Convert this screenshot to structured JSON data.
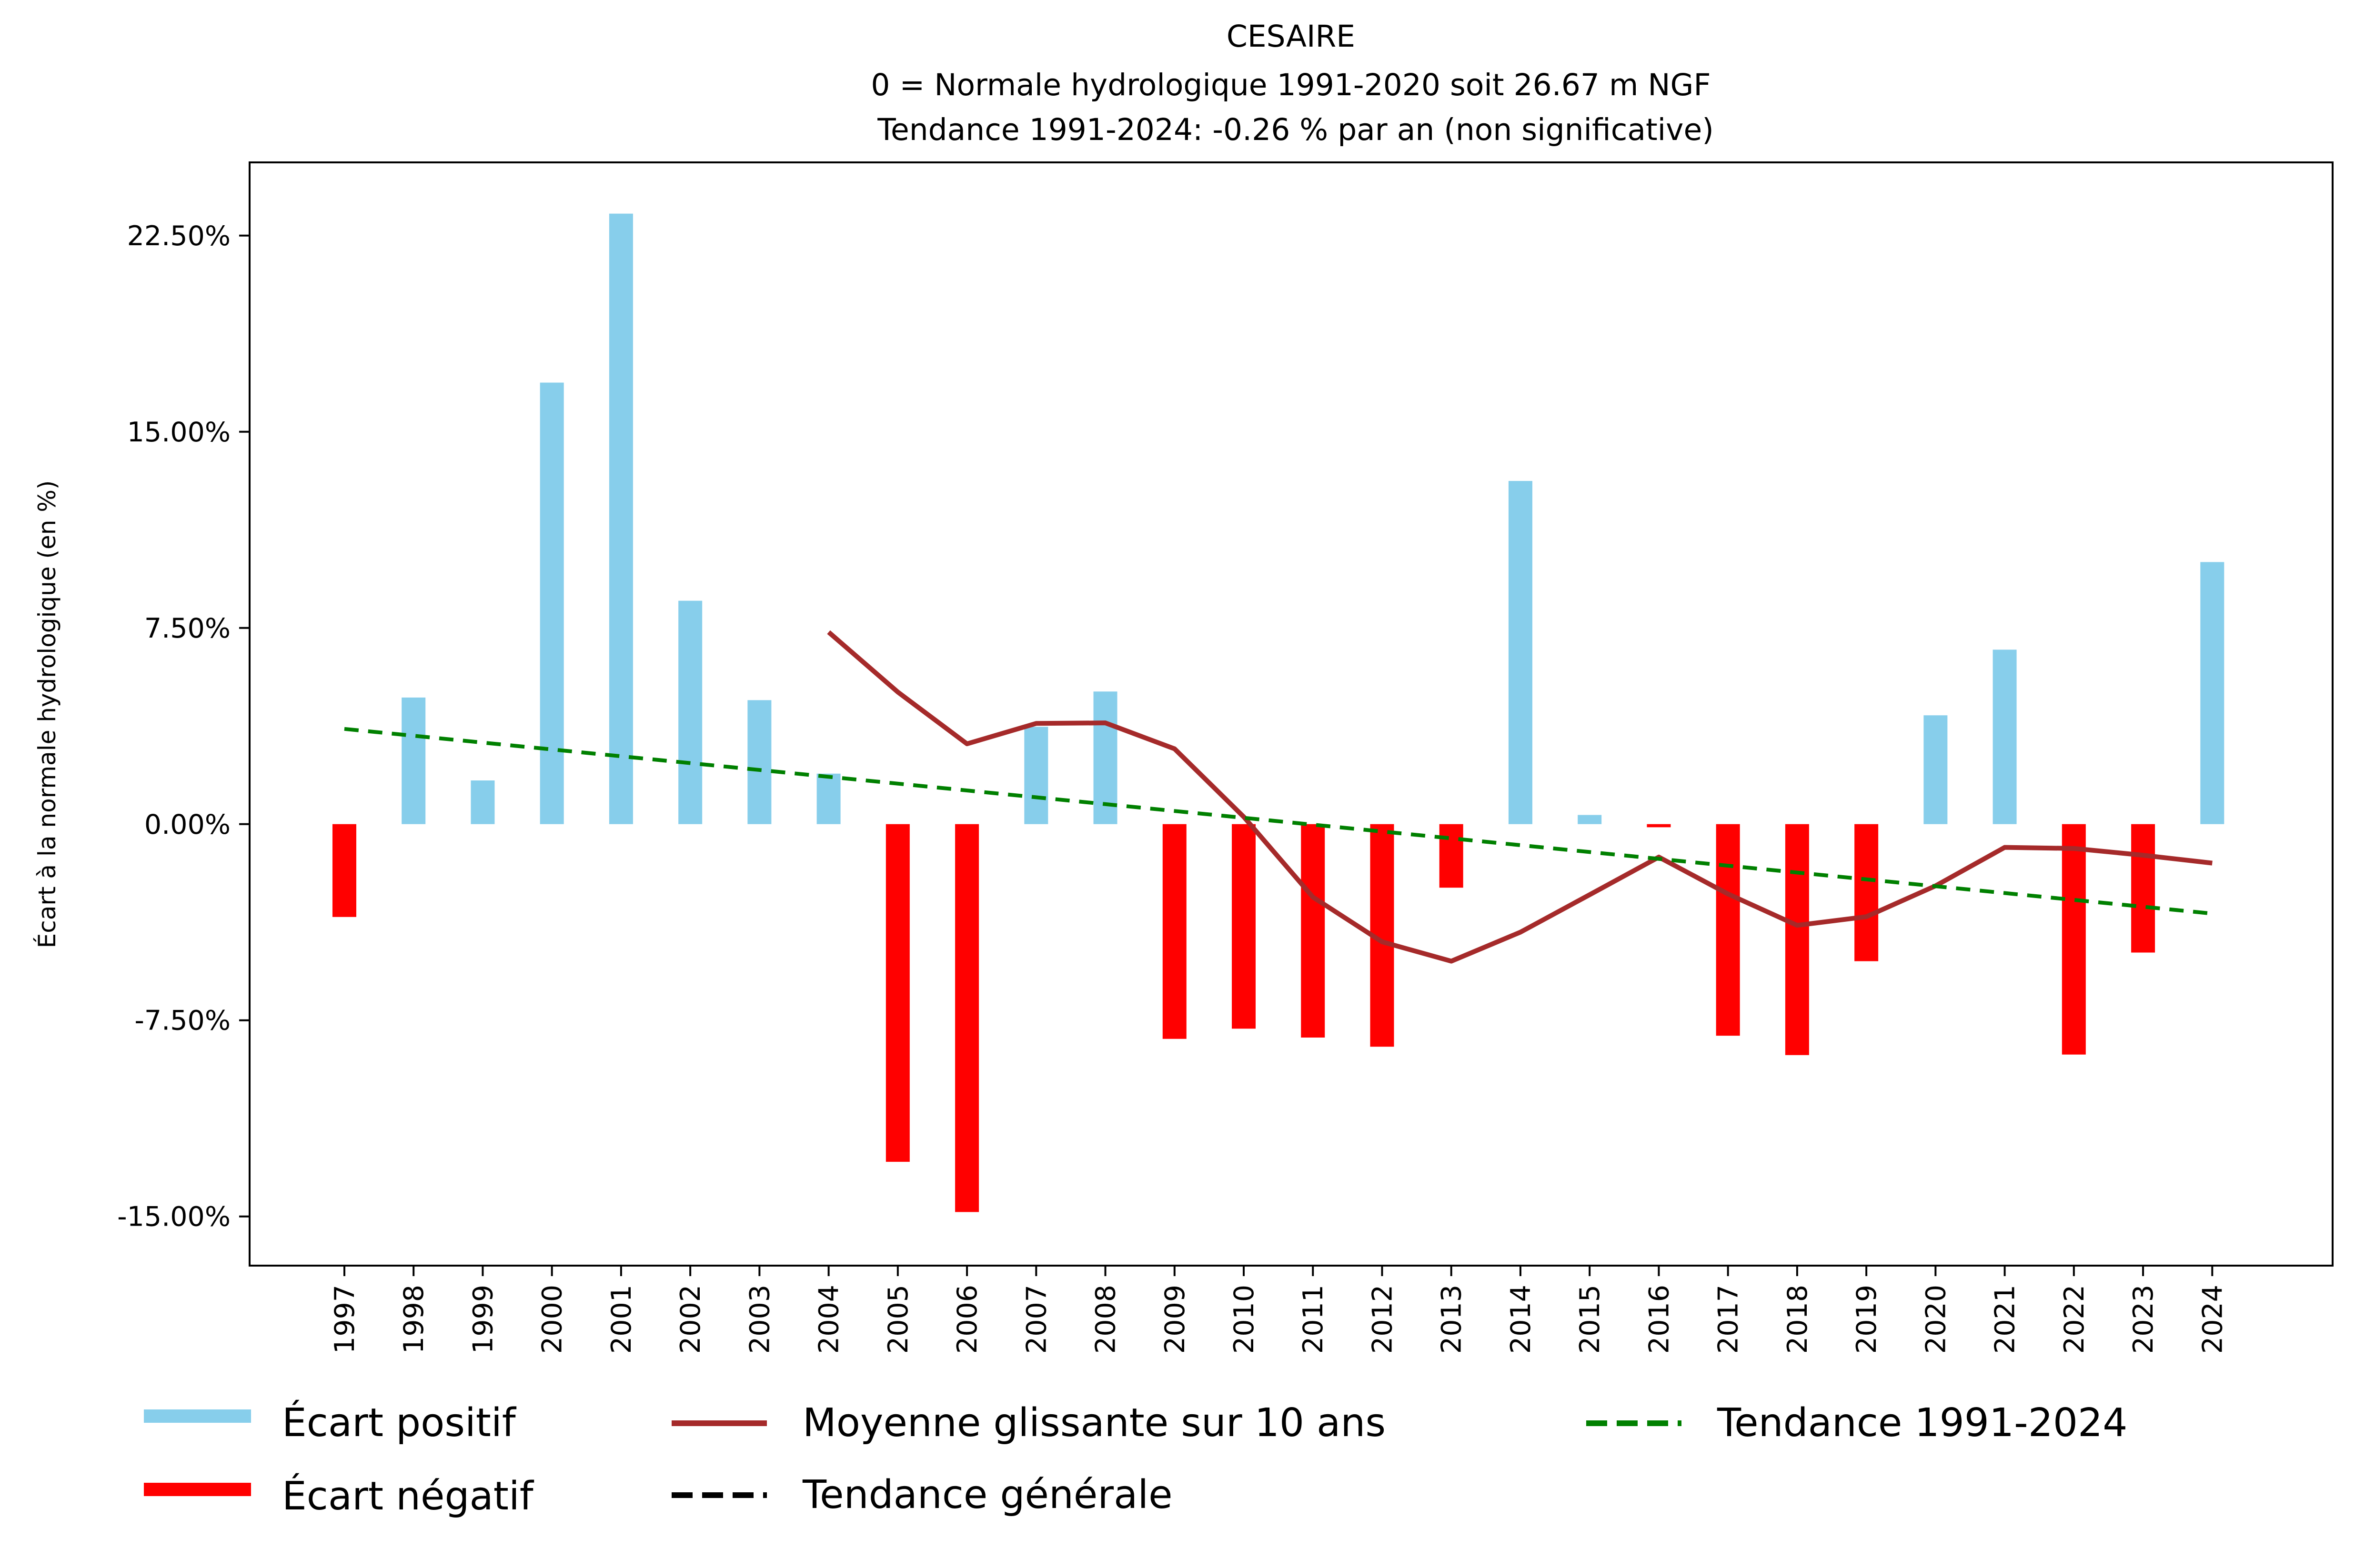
{
  "chart_data": {
    "type": "bar",
    "title_lines": [
      "CESAIRE",
      "0 = Normale hydrologique 1991-2020 soit 26.67 m NGF",
      " Tendance 1991-2024: -0.26 % par an (non significative)"
    ],
    "xlabel": "",
    "ylabel": "Écart à la normale hydrologique (en %)",
    "ylim": [
      -16.88,
      25.3
    ],
    "yticks": [
      -15,
      -7.5,
      0,
      7.5,
      15,
      22.5
    ],
    "ytick_labels": [
      "-15.00%",
      "-7.50%",
      "0.00%",
      "7.50%",
      "15.00%",
      "22.50%"
    ],
    "categories": [
      "1997",
      "1998",
      "1999",
      "2000",
      "2001",
      "2002",
      "2003",
      "2004",
      "2005",
      "2006",
      "2007",
      "2008",
      "2009",
      "2010",
      "2011",
      "2012",
      "2013",
      "2014",
      "2015",
      "2016",
      "2017",
      "2018",
      "2019",
      "2020",
      "2021",
      "2022",
      "2023",
      "2024"
    ],
    "values": [
      -3.55,
      4.84,
      1.67,
      16.88,
      23.34,
      8.54,
      4.74,
      1.93,
      -12.91,
      -14.83,
      3.72,
      5.07,
      -8.21,
      -7.82,
      -8.16,
      -8.51,
      -2.43,
      13.12,
      0.35,
      -0.12,
      -8.09,
      -8.83,
      -5.24,
      4.16,
      6.67,
      -8.81,
      -4.91,
      10.02
    ],
    "series": [
      {
        "name": "Moyenne glissante sur 10 ans",
        "type": "line",
        "x": [
          "2004",
          "2005",
          "2006",
          "2007",
          "2008",
          "2009",
          "2010",
          "2011",
          "2012",
          "2013",
          "2014",
          "2015",
          "2016",
          "2017",
          "2018",
          "2019",
          "2020",
          "2021",
          "2022",
          "2023",
          "2024"
        ],
        "values": [
          7.34,
          5.05,
          3.07,
          3.85,
          3.87,
          2.88,
          0.28,
          -2.79,
          -4.5,
          -5.24,
          -4.13,
          -2.7,
          -1.26,
          -2.67,
          -3.87,
          -3.54,
          -2.36,
          -0.89,
          -0.93,
          -1.19,
          -1.49
        ]
      },
      {
        "name": "Tendance 1991-2024",
        "type": "line-dashed",
        "x": [
          "1997",
          "2024"
        ],
        "values": [
          3.64,
          -3.42
        ]
      }
    ],
    "legend": {
      "placement": "bottom",
      "entries": [
        {
          "label": "Écart positif",
          "kind": "patch",
          "color": "#87ceeb"
        },
        {
          "label": "Écart négatif",
          "kind": "patch",
          "color": "#ff0000"
        },
        {
          "label": "Moyenne glissante sur 10 ans",
          "kind": "line",
          "color": "#a52a2a"
        },
        {
          "label": "Tendance générale",
          "kind": "dashed",
          "color": "#000000"
        },
        {
          "label": "Tendance 1991-2024",
          "kind": "dashed",
          "color": "#008000"
        }
      ]
    },
    "colors": {
      "positive": "#87ceeb",
      "negative": "#ff0000",
      "moving_average": "#a52a2a",
      "trend": "#008000",
      "general_trend": "#000000"
    },
    "grid": false
  }
}
